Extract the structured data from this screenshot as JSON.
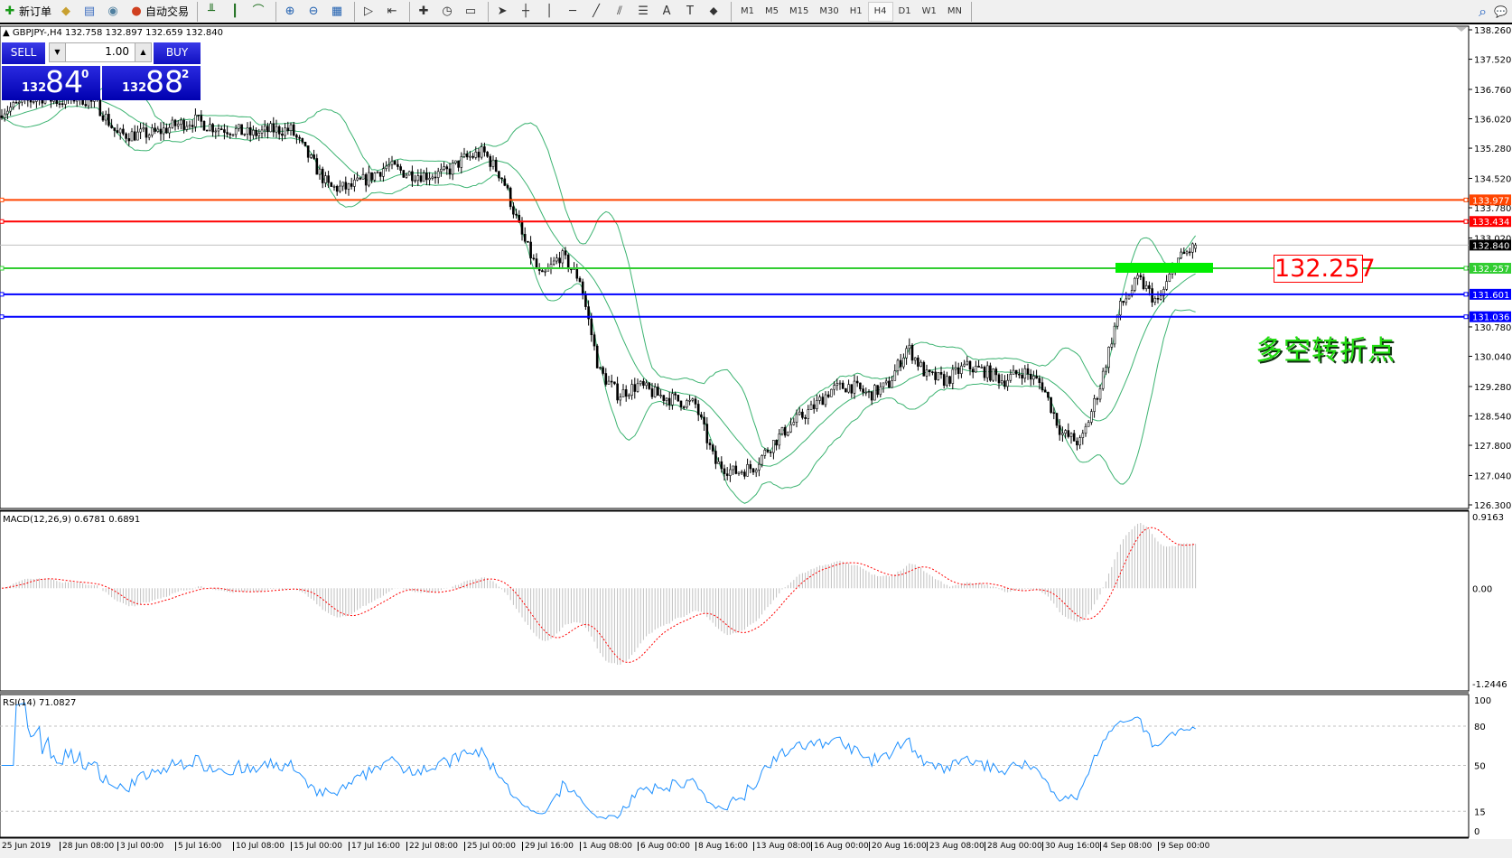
{
  "toolbar": {
    "items": [
      {
        "label": "新订单",
        "icon": "new-order-icon",
        "glyph": "✚"
      },
      {
        "label": "",
        "icon": "market-watch-icon",
        "glyph": "◆"
      },
      {
        "label": "",
        "icon": "navigator-icon",
        "glyph": "▤"
      },
      {
        "label": "",
        "icon": "signal-icon",
        "glyph": "◉"
      },
      {
        "label": "自动交易",
        "icon": "autotrading-icon",
        "glyph": "●"
      }
    ],
    "tools": [
      {
        "icon": "bar-chart-icon",
        "glyph": "╨"
      },
      {
        "icon": "candlestick-icon",
        "glyph": "┃"
      },
      {
        "icon": "line-chart-icon",
        "glyph": "⌒"
      },
      {
        "icon": "zoom-in-icon",
        "glyph": "⊕"
      },
      {
        "icon": "zoom-out-icon",
        "glyph": "⊖"
      },
      {
        "icon": "tile-windows-icon",
        "glyph": "▦"
      },
      {
        "icon": "auto-scroll-icon",
        "glyph": "▷"
      },
      {
        "icon": "chart-shift-icon",
        "glyph": "⇤"
      },
      {
        "icon": "indicators-icon",
        "glyph": "✚"
      },
      {
        "icon": "periods-icon",
        "glyph": "◷"
      },
      {
        "icon": "templates-icon",
        "glyph": "▭"
      },
      {
        "icon": "cursor-icon",
        "glyph": "➤"
      },
      {
        "icon": "crosshair-icon",
        "glyph": "┼"
      },
      {
        "icon": "vertical-line-icon",
        "glyph": "│"
      },
      {
        "icon": "horizontal-line-icon",
        "glyph": "─"
      },
      {
        "icon": "trendline-icon",
        "glyph": "╱"
      },
      {
        "icon": "equidistant-channel-icon",
        "glyph": "⫽"
      },
      {
        "icon": "fibonacci-icon",
        "glyph": "☰"
      },
      {
        "icon": "text-icon",
        "glyph": "A"
      },
      {
        "icon": "text-label-icon",
        "glyph": "T"
      },
      {
        "icon": "arrows-icon",
        "glyph": "⬥"
      }
    ],
    "timeframes": [
      "M1",
      "M5",
      "M15",
      "M30",
      "H1",
      "H4",
      "D1",
      "W1",
      "MN"
    ],
    "active_timeframe": "H4"
  },
  "chart": {
    "header": "GBPJPY-,H4  132.758 132.897 132.659 132.840",
    "trade": {
      "sell": "SELL",
      "buy": "BUY",
      "lot": "1.00",
      "bid_small": "132",
      "bid_large": "84",
      "bid_sup": "0",
      "ask_small": "132",
      "ask_large": "88",
      "ask_sup": "2"
    },
    "price_ticks": [
      "138.260",
      "137.520",
      "136.760",
      "136.020",
      "135.280",
      "134.520",
      "133.780",
      "133.020",
      "130.780",
      "130.040",
      "129.280",
      "128.540",
      "127.800",
      "127.040",
      "126.300"
    ],
    "levels": [
      {
        "price": "133.977",
        "color": "#ff4500"
      },
      {
        "price": "133.434",
        "color": "#ff0000"
      },
      {
        "price": "132.257",
        "color": "#32cd32"
      },
      {
        "price": "131.601",
        "color": "#0000ff"
      },
      {
        "price": "131.036",
        "color": "#0000ff"
      }
    ],
    "current_price": "132.840",
    "level_label": "132.257",
    "annotation": "多空转折点",
    "close_path": [
      136.22,
      136.39,
      136.58,
      136.46,
      136.58,
      136.34,
      135.62,
      135.62,
      135.66,
      135.86,
      135.98,
      135.81,
      135.74,
      135.62,
      135.74,
      135.74,
      135.01,
      134.28,
      134.28,
      134.52,
      134.84,
      134.65,
      134.6,
      134.65,
      135.01,
      135.18,
      134.52,
      133.07,
      131.98,
      132.59,
      131.98,
      129.67,
      129.07,
      129.31,
      129.07,
      128.94,
      128.82,
      127.37,
      127.12,
      127.25,
      127.85,
      128.34,
      128.7,
      129.19,
      129.31,
      129.07,
      129.31,
      130.28,
      129.55,
      129.43,
      129.79,
      129.67,
      129.43,
      129.67,
      129.31,
      128.1,
      127.85,
      129.31,
      131.25,
      131.98,
      131.37,
      132.46,
      132.84
    ],
    "bollinger_color": "#3cb371"
  },
  "macd": {
    "label": "MACD(12,26,9) 0.6781 0.6891",
    "ticks": [
      "0.9163",
      "0.00",
      "-1.2446"
    ],
    "histogram_color": "#c0c0c0",
    "signal_color": "#ff0000"
  },
  "rsi": {
    "label": "RSI(14) 71.0827",
    "ticks": [
      "100",
      "80",
      "50",
      "15",
      "0"
    ],
    "line_color": "#1e90ff"
  },
  "time_labels": [
    "25 Jun 2019",
    "28 Jun 08:00",
    "3 Jul 00:00",
    "5 Jul 16:00",
    "10 Jul 08:00",
    "15 Jul 00:00",
    "17 Jul 16:00",
    "22 Jul 08:00",
    "25 Jul 00:00",
    "29 Jul 16:00",
    "1 Aug 08:00",
    "6 Aug 00:00",
    "8 Aug 16:00",
    "13 Aug 08:00",
    "16 Aug 00:00",
    "20 Aug 16:00",
    "23 Aug 08:00",
    "28 Aug 00:00",
    "30 Aug 16:00",
    "4 Sep 08:00",
    "9 Sep 00:00"
  ]
}
